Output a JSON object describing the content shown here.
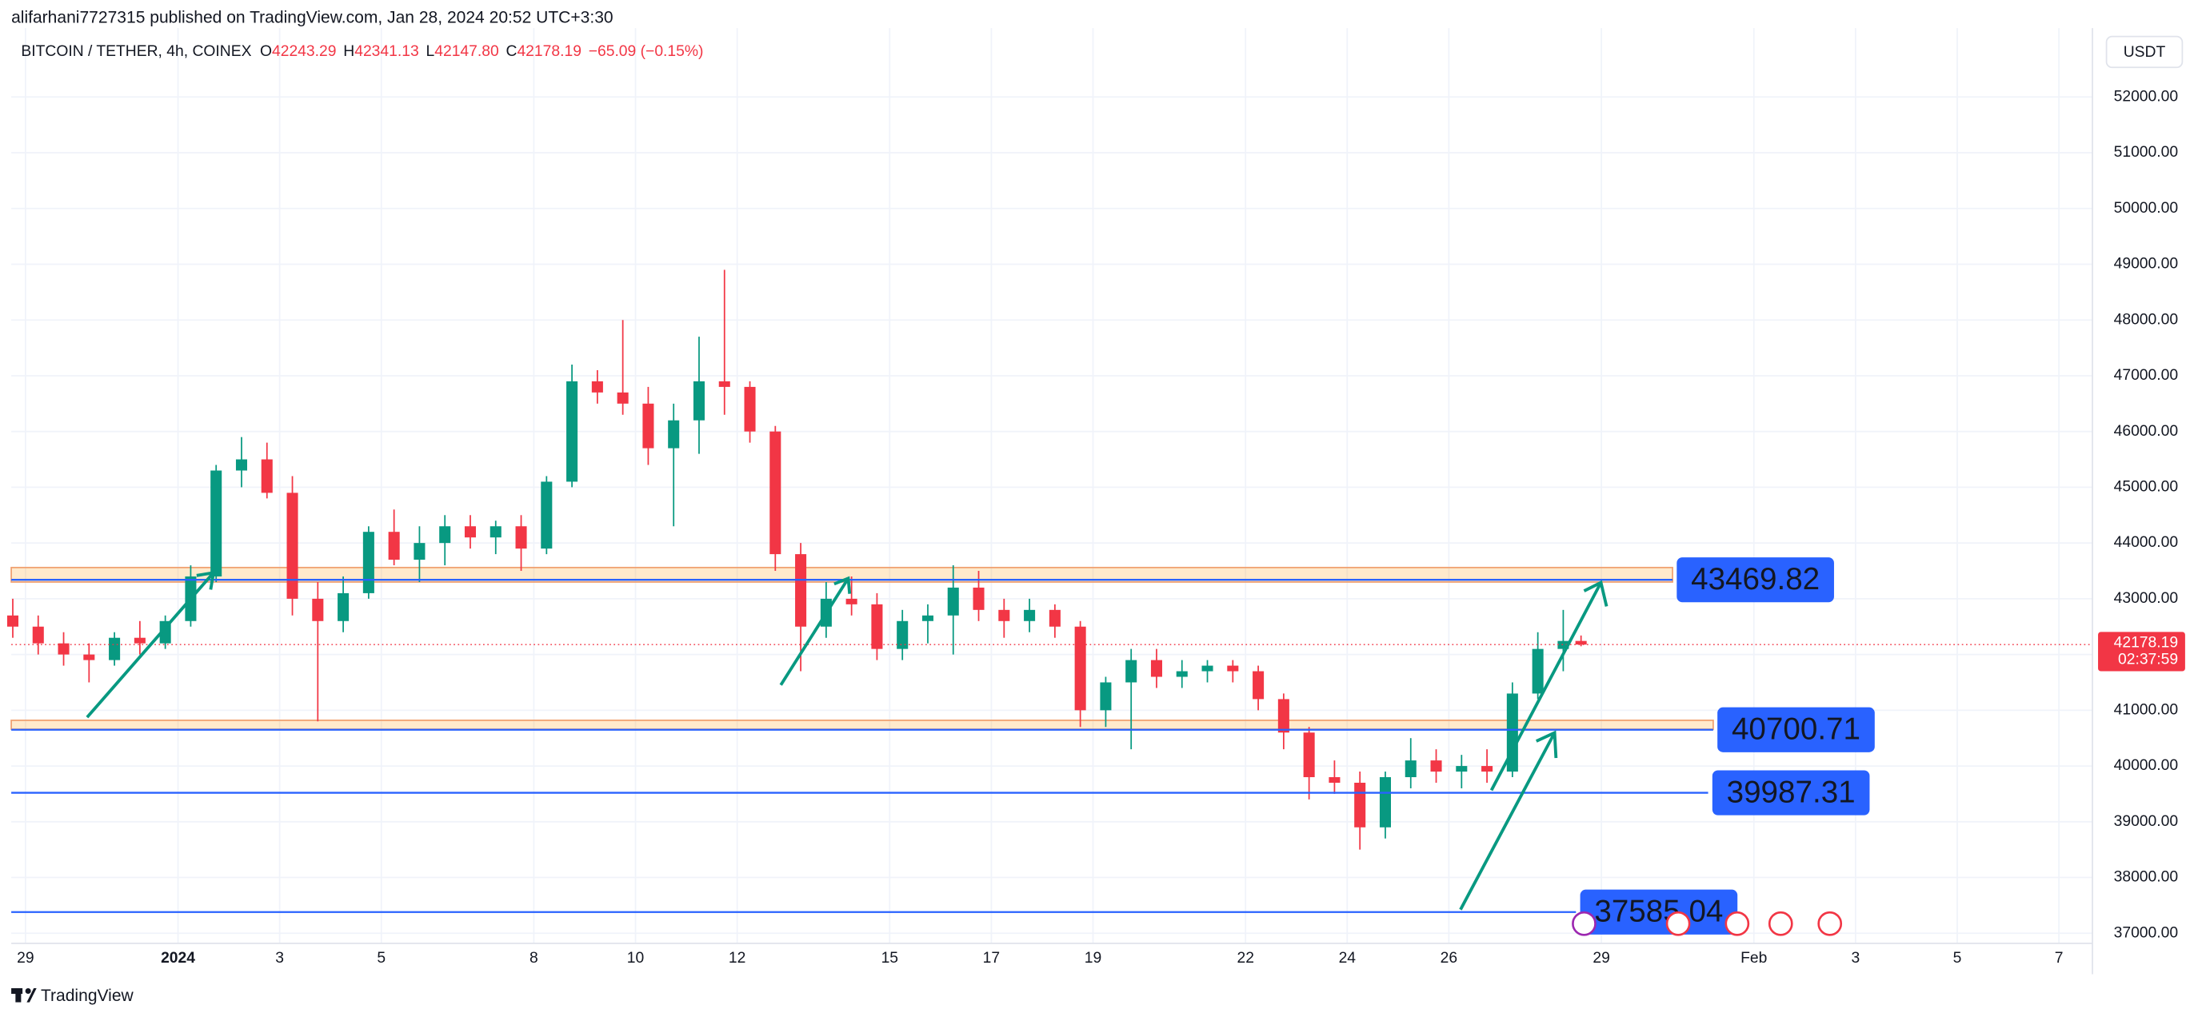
{
  "header": {
    "published": "alifarhani7727315 published on TradingView.com, Jan 28, 2024 20:52 UTC+3:30",
    "symbol": "BITCOIN / TETHER, 4h, COINEX",
    "ohlc": [
      {
        "key": "O",
        "value": "42243.29"
      },
      {
        "key": "H",
        "value": "42341.13"
      },
      {
        "key": "L",
        "value": "42147.80"
      },
      {
        "key": "C",
        "value": "42178.19"
      }
    ],
    "change": "−65.09 (−0.15%)",
    "currency": "USDT",
    "countdown": "02:37:59"
  },
  "footer": {
    "brand": "TradingView"
  },
  "chart_data": {
    "type": "candlestick",
    "up_color": "#089981",
    "down_color": "#f23645",
    "grid": true,
    "xlim": [
      -0.28,
      40.66
    ],
    "ylim": [
      36820,
      53110
    ],
    "xticks": [
      {
        "value": 0,
        "label": "29"
      },
      {
        "value": 3,
        "label": "2024"
      },
      {
        "value": 5,
        "label": "3"
      },
      {
        "value": 7,
        "label": "5"
      },
      {
        "value": 10,
        "label": "8"
      },
      {
        "value": 12,
        "label": "10"
      },
      {
        "value": 14,
        "label": "12"
      },
      {
        "value": 17,
        "label": "15"
      },
      {
        "value": 19,
        "label": "17"
      },
      {
        "value": 21,
        "label": "19"
      },
      {
        "value": 24,
        "label": "22"
      },
      {
        "value": 26,
        "label": "24"
      },
      {
        "value": 28,
        "label": "26"
      },
      {
        "value": 31,
        "label": "29"
      },
      {
        "value": 34,
        "label": "Feb"
      },
      {
        "value": 36,
        "label": "3"
      },
      {
        "value": 38,
        "label": "5"
      },
      {
        "value": 40,
        "label": "7"
      }
    ],
    "yticks": [
      {
        "value": 37000,
        "label": "37000.00"
      },
      {
        "value": 38000,
        "label": "38000.00"
      },
      {
        "value": 39000,
        "label": "39000.00"
      },
      {
        "value": 40000,
        "label": "40000.00"
      },
      {
        "value": 41000,
        "label": "41000.00"
      },
      {
        "value": 42000,
        "label": "42000.00"
      },
      {
        "value": 43000,
        "label": "43000.00"
      },
      {
        "value": 44000,
        "label": "44000.00"
      },
      {
        "value": 45000,
        "label": "45000.00"
      },
      {
        "value": 46000,
        "label": "46000.00"
      },
      {
        "value": 47000,
        "label": "47000.00"
      },
      {
        "value": 48000,
        "label": "48000.00"
      },
      {
        "value": 49000,
        "label": "49000.00"
      },
      {
        "value": 50000,
        "label": "50000.00"
      },
      {
        "value": 51000,
        "label": "51000.00"
      },
      {
        "value": 52000,
        "label": "52000.00"
      }
    ],
    "x": [
      -0.25,
      0.25,
      0.75,
      1.25,
      1.75,
      2.25,
      2.75,
      3.25,
      3.75,
      4.25,
      4.75,
      5.25,
      5.75,
      6.25,
      6.75,
      7.25,
      7.75,
      8.25,
      8.75,
      9.25,
      9.75,
      10.25,
      10.75,
      11.25,
      11.75,
      12.25,
      12.75,
      13.25,
      13.75,
      14.25,
      14.75,
      15.25,
      15.75,
      16.25,
      16.75,
      17.25,
      17.75,
      18.25,
      18.75,
      19.25,
      19.75,
      20.25,
      20.75,
      21.25,
      21.75,
      22.25,
      22.75,
      23.25,
      23.75,
      24.25,
      24.75,
      25.25,
      25.75,
      26.25,
      26.75,
      27.25,
      27.75,
      28.25,
      28.75,
      29.25,
      29.75,
      30.25,
      30.6
    ],
    "open": [
      42700,
      42500,
      42200,
      42000,
      41900,
      42300,
      42200,
      42600,
      43400,
      45300,
      45500,
      44900,
      43000,
      42600,
      43100,
      44200,
      43700,
      44000,
      44300,
      44100,
      44300,
      43900,
      45100,
      46900,
      46700,
      46500,
      45700,
      46200,
      46900,
      46800,
      46000,
      43800,
      42500,
      43000,
      42900,
      42100,
      42600,
      42700,
      43200,
      42800,
      42600,
      42800,
      42500,
      41000,
      41500,
      41900,
      41600,
      41700,
      41800,
      41700,
      41200,
      40600,
      39800,
      39700,
      38900,
      39800,
      40100,
      39900,
      40000,
      39900,
      41300,
      42100,
      42243.29
    ],
    "high": [
      43000,
      42700,
      42400,
      42200,
      42400,
      42600,
      42700,
      43600,
      45400,
      45900,
      45800,
      45200,
      43300,
      43400,
      44300,
      44600,
      44300,
      44500,
      44500,
      44400,
      44500,
      45200,
      47200,
      47100,
      48000,
      46800,
      46500,
      47700,
      48900,
      46900,
      46100,
      44000,
      43300,
      43400,
      43100,
      42800,
      42900,
      43600,
      43500,
      43000,
      43000,
      42900,
      42600,
      41600,
      42100,
      42100,
      41900,
      41900,
      41900,
      41800,
      41300,
      40700,
      40100,
      39900,
      39900,
      40500,
      40300,
      40200,
      40300,
      41500,
      42400,
      42800,
      42341.13
    ],
    "low": [
      42300,
      42000,
      41800,
      41500,
      41800,
      42000,
      42100,
      42500,
      43300,
      45000,
      44800,
      42700,
      40800,
      42400,
      43000,
      43600,
      43300,
      43600,
      43900,
      43800,
      43500,
      43800,
      45000,
      46500,
      46300,
      45400,
      44300,
      45600,
      46300,
      45800,
      43500,
      41700,
      42300,
      42700,
      41900,
      41900,
      42200,
      42000,
      42600,
      42300,
      42400,
      42300,
      40700,
      40700,
      40300,
      41400,
      41400,
      41500,
      41500,
      41000,
      40300,
      39400,
      39500,
      38500,
      38700,
      39600,
      39700,
      39600,
      39700,
      39800,
      41200,
      41700,
      42147.8
    ],
    "close": [
      42500,
      42200,
      42000,
      41900,
      42300,
      42200,
      42600,
      43400,
      45300,
      45500,
      44900,
      43000,
      42600,
      43100,
      44200,
      43700,
      44000,
      44300,
      44100,
      44300,
      43900,
      45100,
      46900,
      46700,
      46500,
      45700,
      46200,
      46900,
      46800,
      46000,
      43800,
      42500,
      43000,
      42900,
      42100,
      42600,
      42700,
      43200,
      42800,
      42600,
      42800,
      42500,
      41000,
      41500,
      41900,
      41600,
      41700,
      41800,
      41700,
      41200,
      40600,
      39800,
      39700,
      38900,
      39800,
      40100,
      39900,
      40000,
      39900,
      41300,
      42100,
      42243.29,
      42178.19
    ],
    "zones": [
      {
        "low": 43300,
        "high": 43560,
        "end": 32.4
      },
      {
        "low": 40660,
        "high": 40820,
        "end": 33.2
      }
    ],
    "levels": [
      {
        "price": 43340,
        "end": 32.4,
        "label": "43469.82"
      },
      {
        "price": 40650,
        "end": 33.2,
        "label": "40700.71"
      },
      {
        "price": 39520,
        "end": 33.1,
        "label": "39987.31"
      },
      {
        "price": 37380,
        "end": 30.5,
        "label": "37585.04"
      }
    ]
  }
}
